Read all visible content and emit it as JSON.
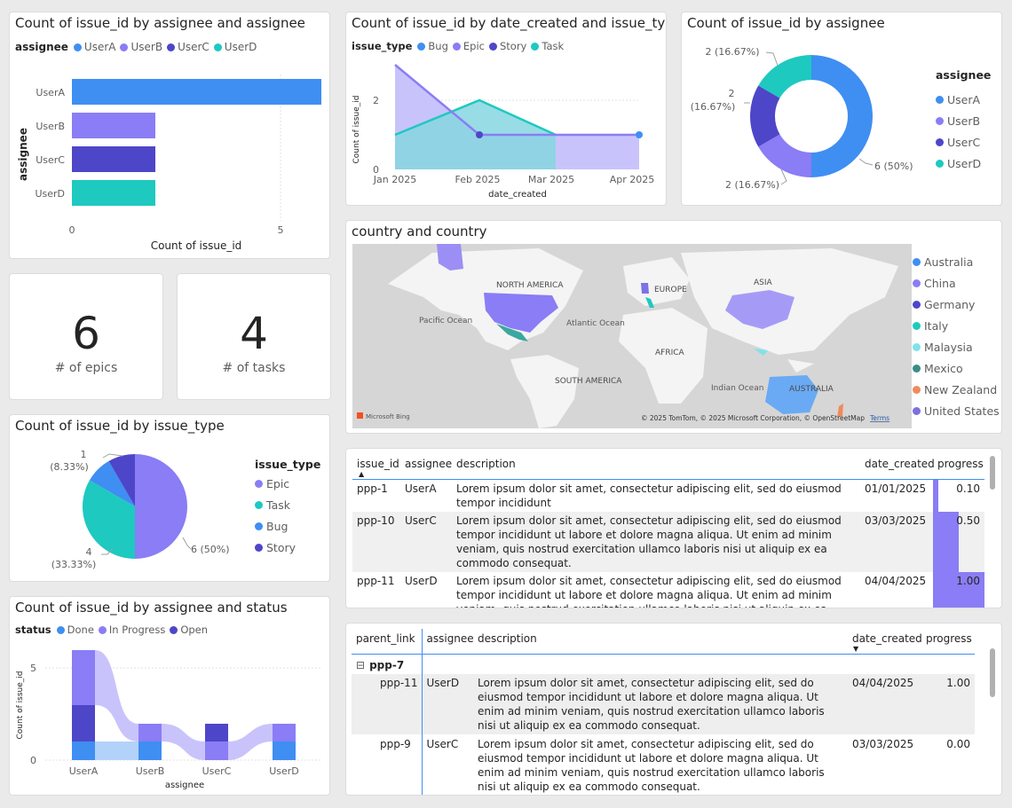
{
  "colors": {
    "userA": "#3f8ef2",
    "userB": "#8a7df5",
    "userC": "#4e46c8",
    "userD": "#1ec9c0",
    "bug": "#3f8ef2",
    "epic": "#8a7df5",
    "story": "#4e46c8",
    "task": "#1ec9c0"
  },
  "assignee_bar": {
    "title": "Count of issue_id by assignee and assignee",
    "legend_title": "assignee",
    "legend": [
      "UserA",
      "UserB",
      "UserC",
      "UserD"
    ],
    "ylabel": "assignee",
    "xlabel": "Count of issue_id",
    "ticks": [
      "0",
      "5"
    ]
  },
  "area_chart": {
    "title": "Count of issue_id by date_created and issue_type",
    "legend_title": "issue_type",
    "legend": [
      "Bug",
      "Epic",
      "Story",
      "Task"
    ],
    "ylabel": "Count of issue_id",
    "xlabel": "date_created",
    "yticks": [
      "0",
      "2"
    ],
    "xticks": [
      "Jan 2025",
      "Feb 2025",
      "Mar 2025",
      "Apr 2025"
    ]
  },
  "donut": {
    "title": "Count of issue_id by assignee",
    "legend_title": "assignee",
    "legend": [
      "UserA",
      "UserB",
      "UserC",
      "UserD"
    ],
    "label_a": "6 (50%)",
    "label_b": "2 (16.67%)",
    "label_c1": "2",
    "label_c2": "(16.67%)",
    "label_d": "2 (16.67%)"
  },
  "kpi_epics": {
    "value": "6",
    "label": "# of epics"
  },
  "kpi_tasks": {
    "value": "4",
    "label": "# of tasks"
  },
  "map": {
    "title": "country and country",
    "labels": {
      "north_america": "NORTH AMERICA",
      "europe": "EUROPE",
      "asia": "ASIA",
      "pacific": "Pacific Ocean",
      "atlantic": "Atlantic Ocean",
      "africa": "AFRICA",
      "south_america": "SOUTH AMERICA",
      "indian": "Indian Ocean",
      "australia": "AUSTRALIA"
    },
    "bing": "Microsoft Bing",
    "credit": "© 2025 TomTom, © 2025 Microsoft Corporation, © OpenStreetMap",
    "terms": "Terms",
    "legend": [
      {
        "name": "Australia",
        "color": "#3f8ef2"
      },
      {
        "name": "China",
        "color": "#8a7df5"
      },
      {
        "name": "Germany",
        "color": "#4e46c8"
      },
      {
        "name": "Italy",
        "color": "#1ec9c0"
      },
      {
        "name": "Malaysia",
        "color": "#7fe3e8"
      },
      {
        "name": "Mexico",
        "color": "#3a8d86"
      },
      {
        "name": "New Zealand",
        "color": "#f08a5d"
      },
      {
        "name": "United States",
        "color": "#7c6fe0"
      }
    ]
  },
  "pie": {
    "title": "Count of issue_id by issue_type",
    "legend_title": "issue_type",
    "legend": [
      "Epic",
      "Task",
      "Bug",
      "Story"
    ],
    "label_top1": "1",
    "label_top2": "(8.33%)",
    "label_left1": "4",
    "label_left2": "(33.33%)",
    "label_right": "6 (50%)"
  },
  "status_chart": {
    "title": "Count of issue_id by assignee and status",
    "legend_title": "status",
    "legend": [
      "Done",
      "In Progress",
      "Open"
    ],
    "ylabel": "Count of issue_id",
    "xlabel": "assignee",
    "yticks": [
      "5",
      "0"
    ],
    "xticks": [
      "UserA",
      "UserB",
      "UserC",
      "UserD"
    ]
  },
  "table1": {
    "headers": [
      "issue_id",
      "assignee",
      "description",
      "date_created",
      "progress"
    ],
    "rows": [
      {
        "id": "ppp-1",
        "assignee": "UserA",
        "desc": "Lorem ipsum dolor sit amet, consectetur adipiscing elit, sed do eiusmod tempor incididunt",
        "date": "01/01/2025",
        "progress": "0.10",
        "frac": 0.1
      },
      {
        "id": "ppp-10",
        "assignee": "UserC",
        "desc": "Lorem ipsum dolor sit amet, consectetur adipiscing elit, sed do eiusmod tempor incididunt ut labore et dolore magna aliqua. Ut enim ad minim veniam, quis nostrud exercitation ullamco laboris nisi ut aliquip ex ea commodo consequat.",
        "date": "03/03/2025",
        "progress": "0.50",
        "frac": 0.5
      },
      {
        "id": "ppp-11",
        "assignee": "UserD",
        "desc": "Lorem ipsum dolor sit amet, consectetur adipiscing elit, sed do eiusmod tempor incididunt ut labore et dolore magna aliqua. Ut enim ad minim veniam, quis nostrud exercitation ullamco laboris nisi ut aliquip ex ea commodo consequat.",
        "date": "04/04/2025",
        "progress": "1.00",
        "frac": 1.0
      }
    ]
  },
  "table2": {
    "headers": [
      "parent_link",
      "assignee",
      "description",
      "date_created",
      "progress"
    ],
    "group": "ppp-7",
    "expand_glyph": "⊟",
    "rows": [
      {
        "id": "ppp-11",
        "assignee": "UserD",
        "desc": "Lorem ipsum dolor sit amet, consectetur adipiscing elit, sed do eiusmod tempor incididunt ut labore et dolore magna aliqua. Ut enim ad minim veniam, quis nostrud exercitation ullamco laboris nisi ut aliquip ex ea commodo consequat.",
        "date": "04/04/2025",
        "progress": "1.00"
      },
      {
        "id": "ppp-9",
        "assignee": "UserC",
        "desc": "Lorem ipsum dolor sit amet, consectetur adipiscing elit, sed do eiusmod tempor incididunt ut labore et dolore magna aliqua. Ut enim ad minim veniam, quis nostrud exercitation ullamco laboris nisi ut aliquip ex ea commodo consequat.",
        "date": "03/03/2025",
        "progress": "0.00"
      }
    ]
  }
}
